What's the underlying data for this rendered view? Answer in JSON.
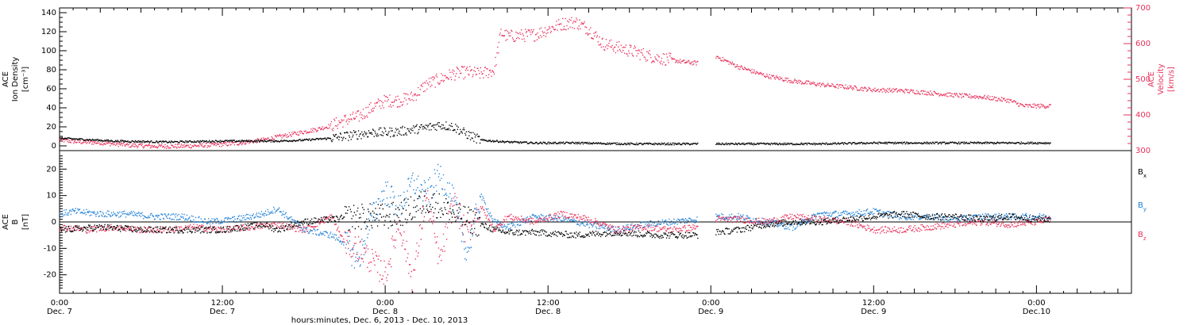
{
  "colors": {
    "density": "#000000",
    "velocity": "#e8305a",
    "bx": "#000000",
    "by": "#1e7fd6",
    "bz": "#e8305a",
    "axis": "#000000"
  },
  "xaxis": {
    "ticks": [
      {
        "hour": 0,
        "time": "0:00",
        "day": "Dec. 7"
      },
      {
        "hour": 12,
        "time": "12:00",
        "day": "Dec. 7"
      },
      {
        "hour": 24,
        "time": "0:00",
        "day": "Dec. 8"
      },
      {
        "hour": 36,
        "time": "12:00",
        "day": "Dec. 8"
      },
      {
        "hour": 48,
        "time": "0:00",
        "day": "Dec. 9"
      },
      {
        "hour": 60,
        "time": "12:00",
        "day": "Dec. 9"
      },
      {
        "hour": 72,
        "time": "0:00",
        "day": "Dec.10"
      }
    ],
    "caption": "hours:minutes, Dec. 6, 2013 - Dec. 10, 2013",
    "range_hours": [
      0,
      79
    ]
  },
  "top_panel": {
    "left_label": [
      "ACE",
      "Ion Density",
      "[cm⁻³]"
    ],
    "right_label": [
      "ACE",
      "Velocity",
      "[km/s]"
    ],
    "left_ticks": [
      "0",
      "20",
      "40",
      "60",
      "80",
      "100",
      "120",
      "140"
    ],
    "right_ticks": [
      "300",
      "400",
      "500",
      "600",
      "700"
    ]
  },
  "bottom_panel": {
    "left_label": [
      "ACE",
      "B",
      "[nT]"
    ],
    "left_ticks": [
      "-20",
      "-10",
      "0",
      "10",
      "20"
    ],
    "legend": [
      {
        "label": "B",
        "sub": "x",
        "key": "bx"
      },
      {
        "label": "B",
        "sub": "y",
        "key": "by"
      },
      {
        "label": "B",
        "sub": "z",
        "key": "bz"
      }
    ]
  },
  "chart_data": [
    {
      "type": "scatter",
      "title": "",
      "xlabel": "hours:minutes, Dec. 6, 2013 - Dec. 10, 2013",
      "ylabel": "ACE Ion Density [cm⁻³]",
      "y2label": "ACE Velocity [km/s]",
      "xlim": [
        0,
        79
      ],
      "ylim": [
        -5,
        145
      ],
      "y2lim": [
        300,
        700
      ],
      "gaps_hours": [
        [
          47.0,
          48.3
        ]
      ],
      "series": [
        {
          "name": "Ion Density",
          "axis": "left",
          "x": [
            0,
            4,
            8,
            12,
            16,
            18,
            20,
            21,
            22,
            23,
            24,
            25,
            26,
            27,
            28,
            29,
            30,
            31,
            33,
            35,
            38,
            42,
            47,
            48.3,
            52,
            56,
            60,
            64,
            68,
            72,
            73
          ],
          "y": [
            8,
            5,
            4,
            5,
            5,
            6,
            8,
            10,
            12,
            14,
            14,
            15,
            17,
            19,
            22,
            20,
            12,
            6,
            4,
            3,
            3,
            2,
            2,
            2,
            2,
            2,
            3,
            3,
            3,
            3,
            3
          ]
        },
        {
          "name": "Velocity",
          "axis": "right",
          "x": [
            0,
            1,
            3,
            5,
            7,
            9,
            11,
            13,
            15,
            17,
            19,
            20,
            21,
            22,
            23,
            24,
            25,
            26,
            27,
            28,
            29,
            30,
            31,
            32,
            32.5,
            33,
            35,
            36,
            37,
            38,
            39,
            40,
            41,
            42,
            43,
            44,
            45,
            46,
            47,
            48.3,
            50,
            52,
            54,
            56,
            58,
            60,
            62,
            64,
            66,
            68,
            70,
            71,
            72,
            73
          ],
          "y": [
            330,
            325,
            322,
            315,
            312,
            312,
            315,
            320,
            330,
            345,
            360,
            370,
            385,
            395,
            420,
            440,
            440,
            450,
            485,
            500,
            515,
            520,
            515,
            525,
            630,
            620,
            625,
            640,
            655,
            660,
            640,
            600,
            590,
            580,
            570,
            560,
            555,
            548,
            545,
            565,
            535,
            510,
            495,
            485,
            478,
            470,
            468,
            462,
            455,
            450,
            440,
            425,
            425,
            425
          ]
        }
      ]
    },
    {
      "type": "scatter",
      "title": "",
      "xlabel": "hours:minutes, Dec. 6, 2013 - Dec. 10, 2013",
      "ylabel": "ACE B [nT]",
      "xlim": [
        0,
        79
      ],
      "ylim": [
        -27,
        27
      ],
      "gaps_hours": [
        [
          47.0,
          48.3
        ]
      ],
      "series": [
        {
          "name": "Bx",
          "x": [
            0,
            3,
            6,
            9,
            12,
            15,
            16,
            18,
            20,
            22,
            24,
            25,
            26,
            27,
            28,
            29,
            30,
            31,
            32,
            33,
            35,
            38,
            41,
            44,
            47,
            48.3,
            50,
            52,
            54,
            56,
            58,
            60,
            62,
            64,
            66,
            68,
            70,
            72,
            73
          ],
          "y": [
            -3,
            -2,
            -3,
            -3,
            -3,
            -1,
            -3,
            0,
            1,
            2,
            2,
            3,
            5,
            8,
            6,
            3,
            1,
            -1,
            -3,
            -4,
            -4,
            -5,
            -4,
            -5,
            -5,
            -4,
            -3,
            -1,
            0,
            0,
            1,
            2,
            3,
            2,
            2,
            1,
            2,
            1,
            1
          ]
        },
        {
          "name": "By",
          "x": [
            0,
            1,
            3,
            5,
            7,
            9,
            11,
            13,
            15,
            16,
            18,
            20,
            21,
            22,
            23,
            24,
            25,
            26,
            27,
            28,
            29,
            30,
            31,
            32,
            33,
            35,
            37,
            39,
            41,
            43,
            45,
            47,
            48.3,
            50,
            52,
            54,
            56,
            58,
            60,
            62,
            64,
            66,
            68,
            70,
            72,
            73
          ],
          "y": [
            3,
            4,
            3,
            3,
            2,
            2,
            0,
            1,
            3,
            5,
            -3,
            -5,
            -8,
            -15,
            2,
            12,
            5,
            15,
            10,
            18,
            8,
            -12,
            10,
            0,
            -2,
            2,
            1,
            -1,
            -3,
            -1,
            0,
            1,
            2,
            2,
            0,
            -2,
            3,
            3,
            4,
            2,
            2,
            1,
            2,
            2,
            2,
            2
          ]
        },
        {
          "name": "Bz",
          "x": [
            0,
            2,
            4,
            6,
            8,
            10,
            12,
            14,
            16,
            18,
            20,
            21,
            22,
            23,
            24,
            25,
            26,
            27,
            28,
            29,
            30,
            31,
            32,
            33,
            35,
            37,
            39,
            41,
            43,
            45,
            47,
            48.3,
            50,
            52,
            54,
            56,
            58,
            60,
            62,
            64,
            66,
            68,
            70,
            72,
            73
          ],
          "y": [
            -2,
            -3,
            -2,
            -3,
            -3,
            -2,
            -3,
            -2,
            -1,
            -3,
            2,
            -8,
            -10,
            -15,
            -20,
            0,
            -22,
            10,
            -15,
            8,
            -5,
            6,
            -3,
            2,
            0,
            3,
            1,
            -3,
            -2,
            -3,
            -2,
            1,
            1,
            0,
            2,
            1,
            0,
            -3,
            -3,
            -2,
            -1,
            0,
            -1,
            0,
            1
          ]
        }
      ]
    }
  ]
}
